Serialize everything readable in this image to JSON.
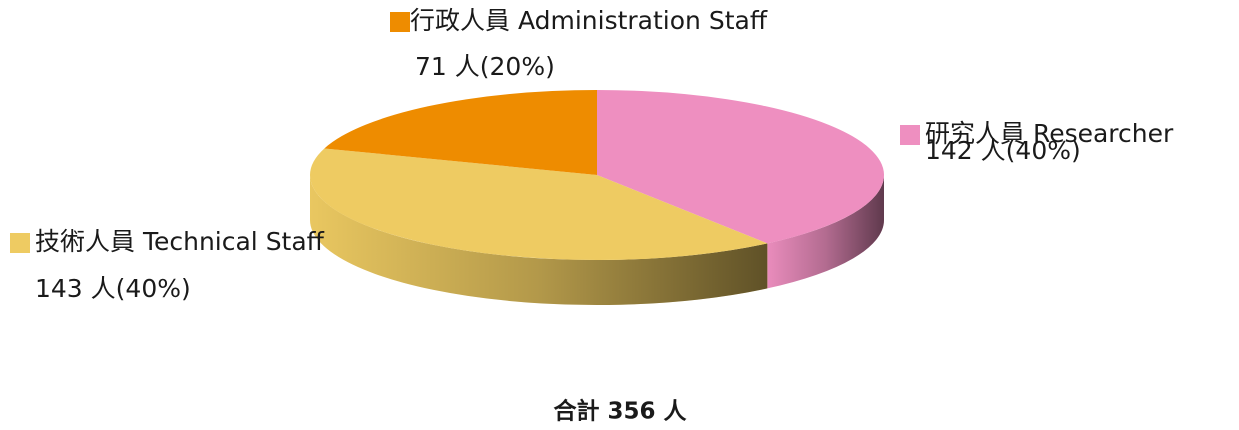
{
  "chart_data": {
    "type": "pie",
    "categories": [
      "研究人員 Researcher",
      "技術人員 Technical Staff",
      "行政人員 Administration Staff"
    ],
    "values": [
      142,
      143,
      71
    ],
    "value_labels": [
      "142 人(40%)",
      "143 人(40%)",
      "71 人(20%)"
    ],
    "colors": [
      "#ee8fc0",
      "#eecb62",
      "#ee8c00"
    ],
    "annotation": "合計 356 人"
  }
}
